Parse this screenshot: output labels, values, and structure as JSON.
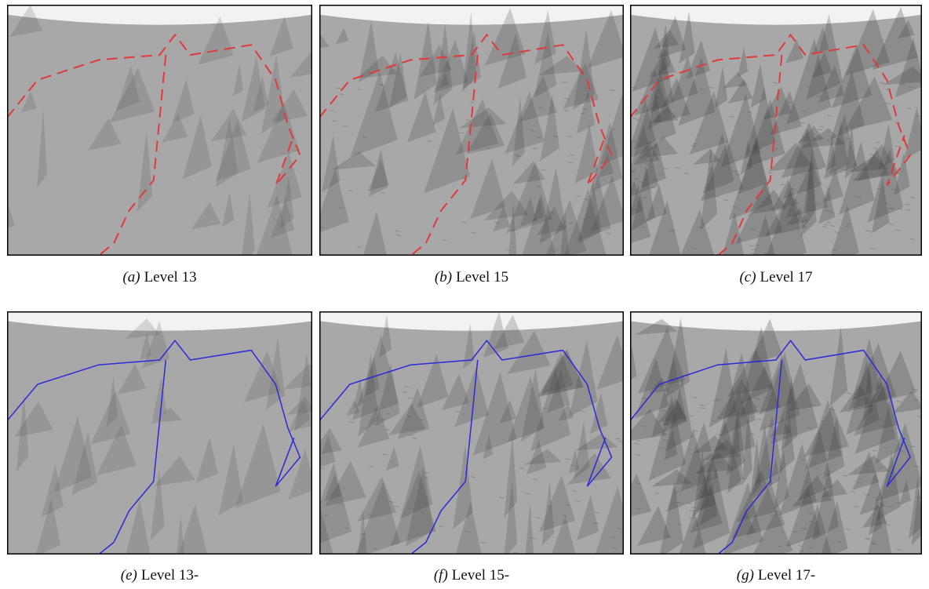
{
  "panels": [
    {
      "label": "(a)",
      "caption": "Level 13"
    },
    {
      "label": "(b)",
      "caption": "Level 15"
    },
    {
      "label": "(c)",
      "caption": "Level 17"
    },
    {
      "label": "(e)",
      "caption": "Level 13-"
    },
    {
      "label": "(f)",
      "caption": "Level 15-"
    },
    {
      "label": "(g)",
      "caption": "Level 17-"
    }
  ]
}
